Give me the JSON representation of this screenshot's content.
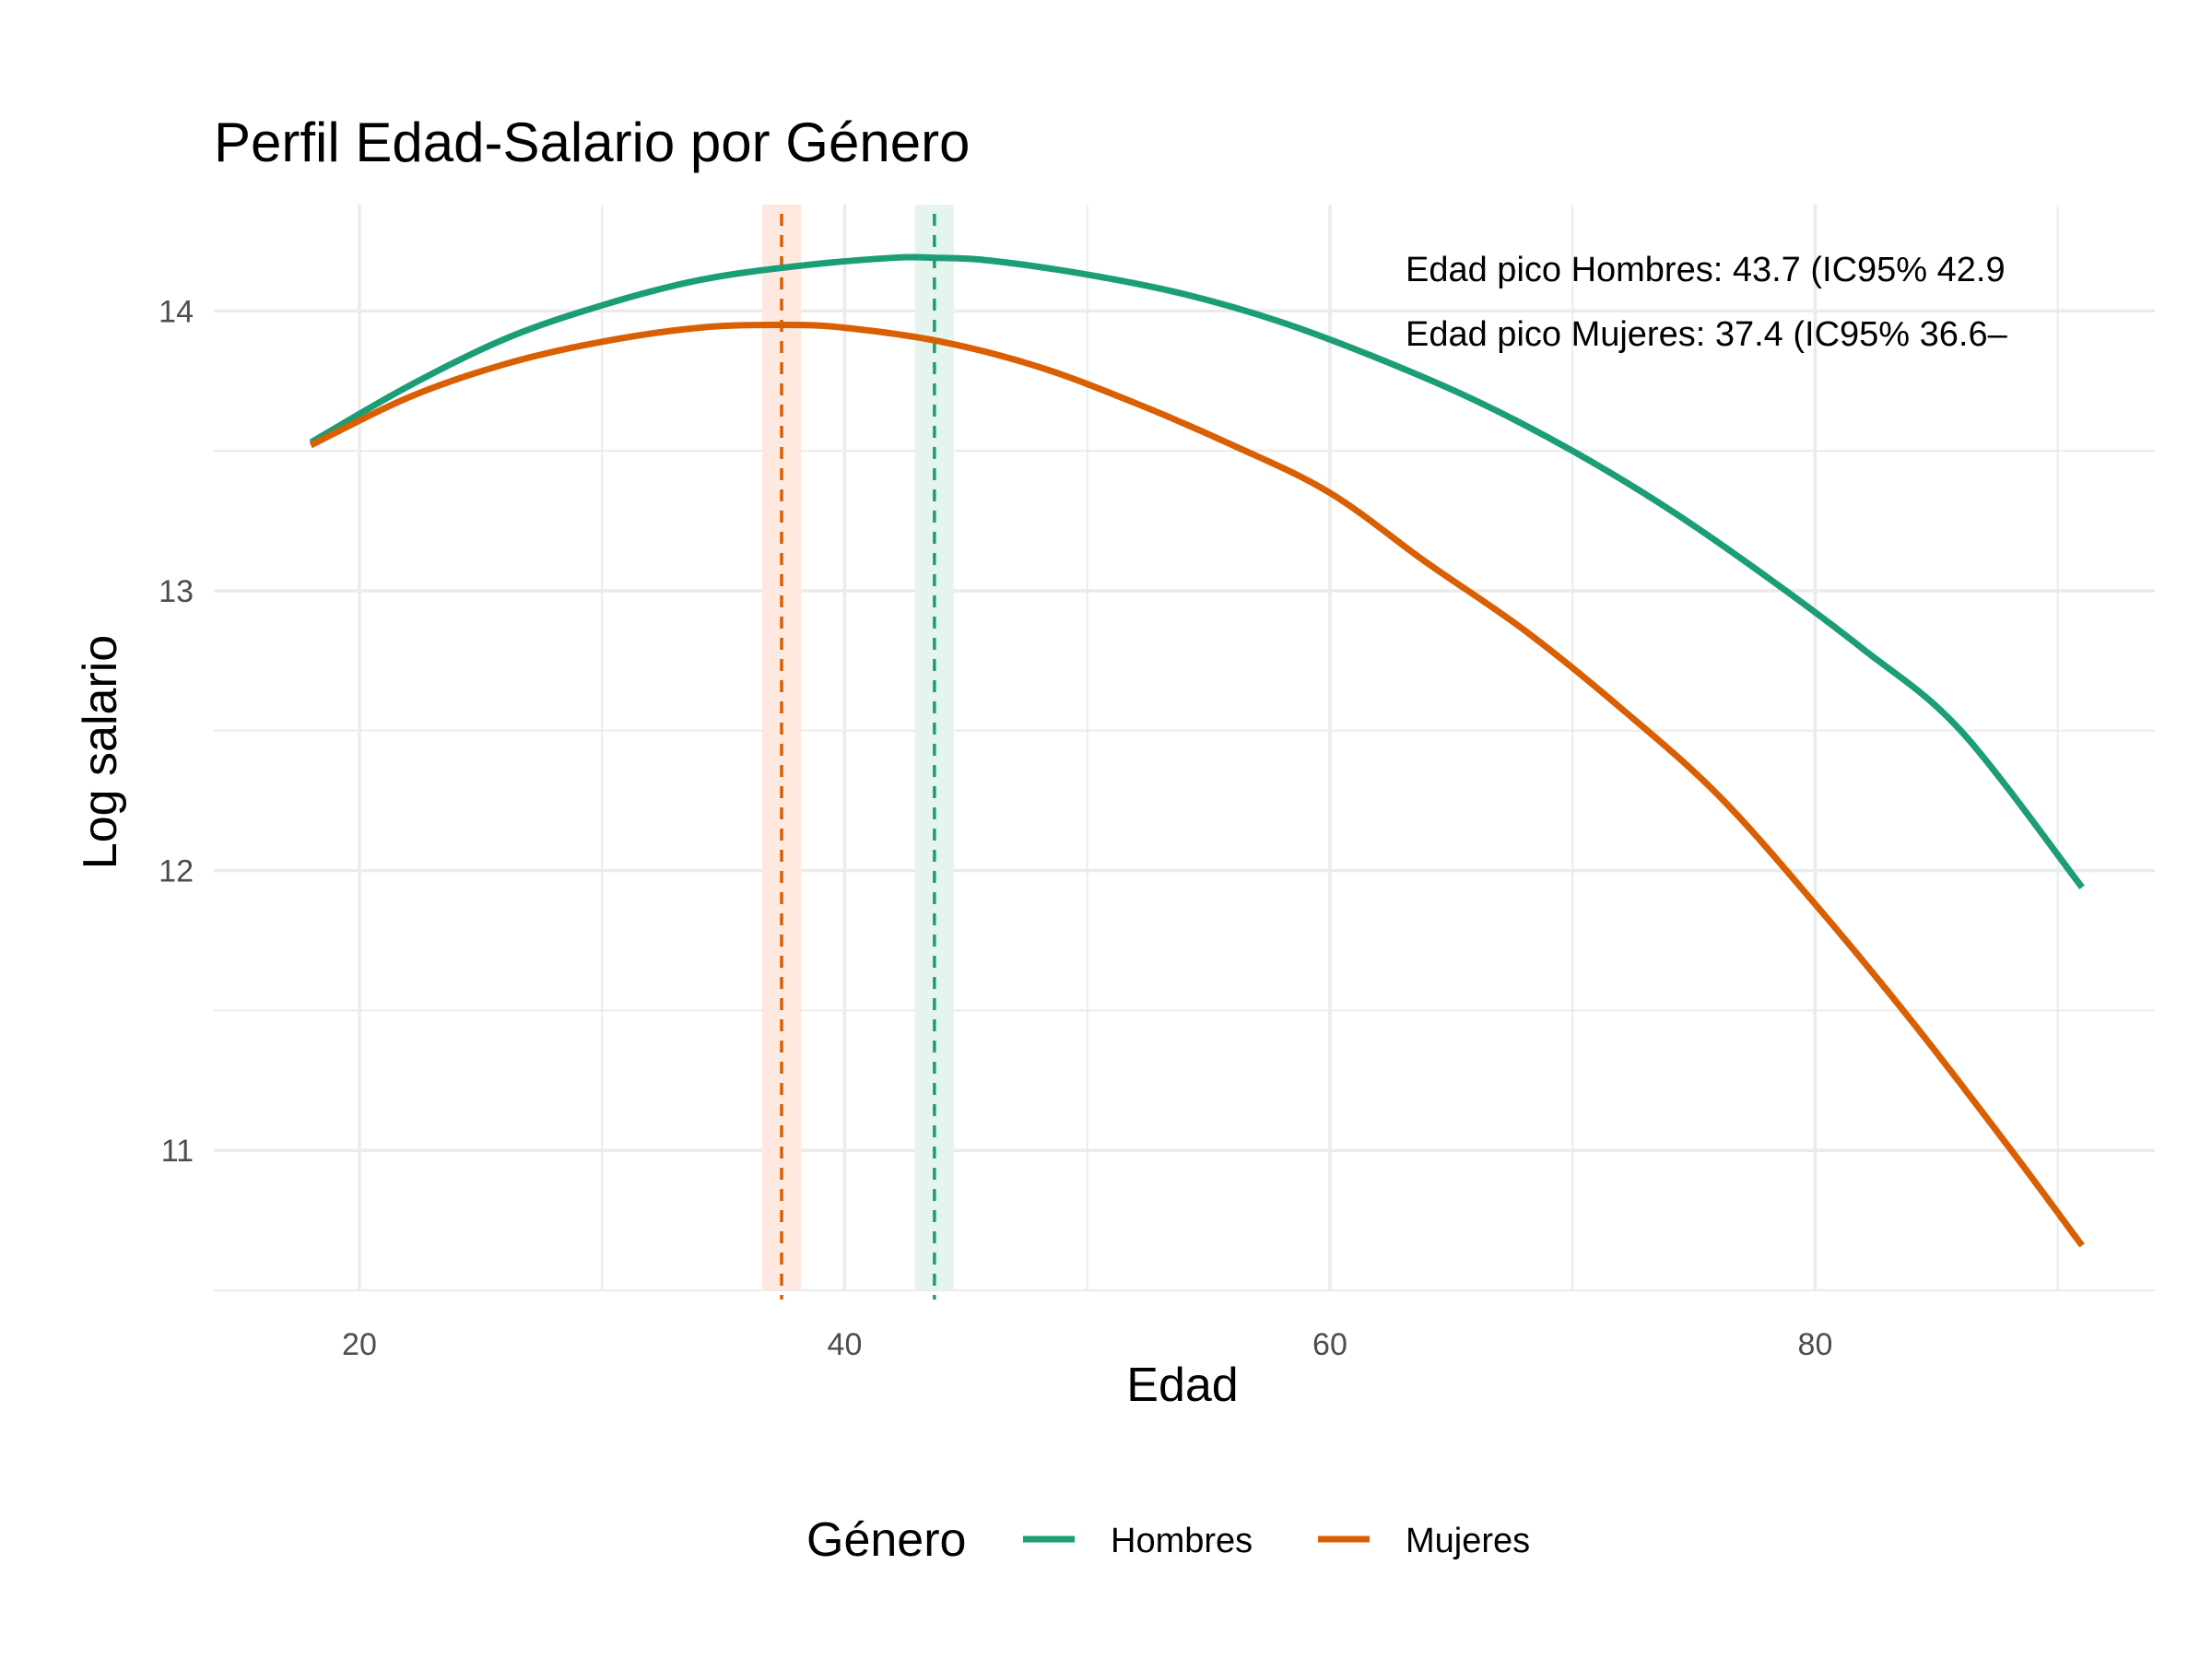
{
  "chart_data": {
    "type": "line",
    "title": "Perfil Edad-Salario por Género",
    "xlabel": "Edad",
    "ylabel": "Log salario",
    "xlim": [
      14,
      94
    ],
    "ylim": [
      10.5,
      14.38
    ],
    "x_ticks": [
      20,
      40,
      60,
      80
    ],
    "x_tick_labels": [
      "20",
      "40",
      "60",
      "80"
    ],
    "y_ticks": [
      11,
      12,
      13,
      14
    ],
    "y_tick_labels": [
      "11",
      "12",
      "13",
      "14"
    ],
    "grid": true,
    "legend": {
      "title": "Género",
      "position": "bottom",
      "entries": [
        "Hombres",
        "Mujeres"
      ]
    },
    "series": [
      {
        "name": "Hombres",
        "color": "#1b9e77",
        "x": [
          18,
          22,
          26,
          30,
          34,
          38,
          42,
          43.7,
          46,
          50,
          54,
          58,
          62,
          66,
          70,
          74,
          78,
          82,
          86,
          91
        ],
        "y": [
          13.53,
          13.73,
          13.9,
          14.02,
          14.11,
          14.16,
          14.19,
          14.19,
          14.18,
          14.13,
          14.06,
          13.96,
          13.83,
          13.68,
          13.5,
          13.29,
          13.05,
          12.79,
          12.5,
          11.94
        ]
      },
      {
        "name": "Mujeres",
        "color": "#d95f02",
        "x": [
          18,
          22,
          26,
          30,
          34,
          37.4,
          40,
          44,
          48,
          52,
          56,
          60,
          64,
          68,
          72,
          76,
          80,
          84,
          88,
          91
        ],
        "y": [
          13.52,
          13.69,
          13.81,
          13.89,
          13.94,
          13.95,
          13.94,
          13.89,
          13.8,
          13.67,
          13.52,
          13.35,
          13.1,
          12.86,
          12.58,
          12.27,
          11.88,
          11.46,
          11.01,
          10.66
        ]
      }
    ],
    "peaks": [
      {
        "name": "Hombres",
        "x": 43.7,
        "ci": [
          42.9,
          44.5
        ],
        "color": "#1b9e77",
        "band_color": "#e5f5ee"
      },
      {
        "name": "Mujeres",
        "x": 37.4,
        "ci": [
          36.6,
          38.2
        ],
        "color": "#d95f02",
        "band_color": "#fde9e0"
      }
    ],
    "annotations": [
      "Edad pico Hombres: 43.7 (IC95% 42.9",
      "Edad pico Mujeres: 37.4 (IC95% 36.6–"
    ]
  }
}
